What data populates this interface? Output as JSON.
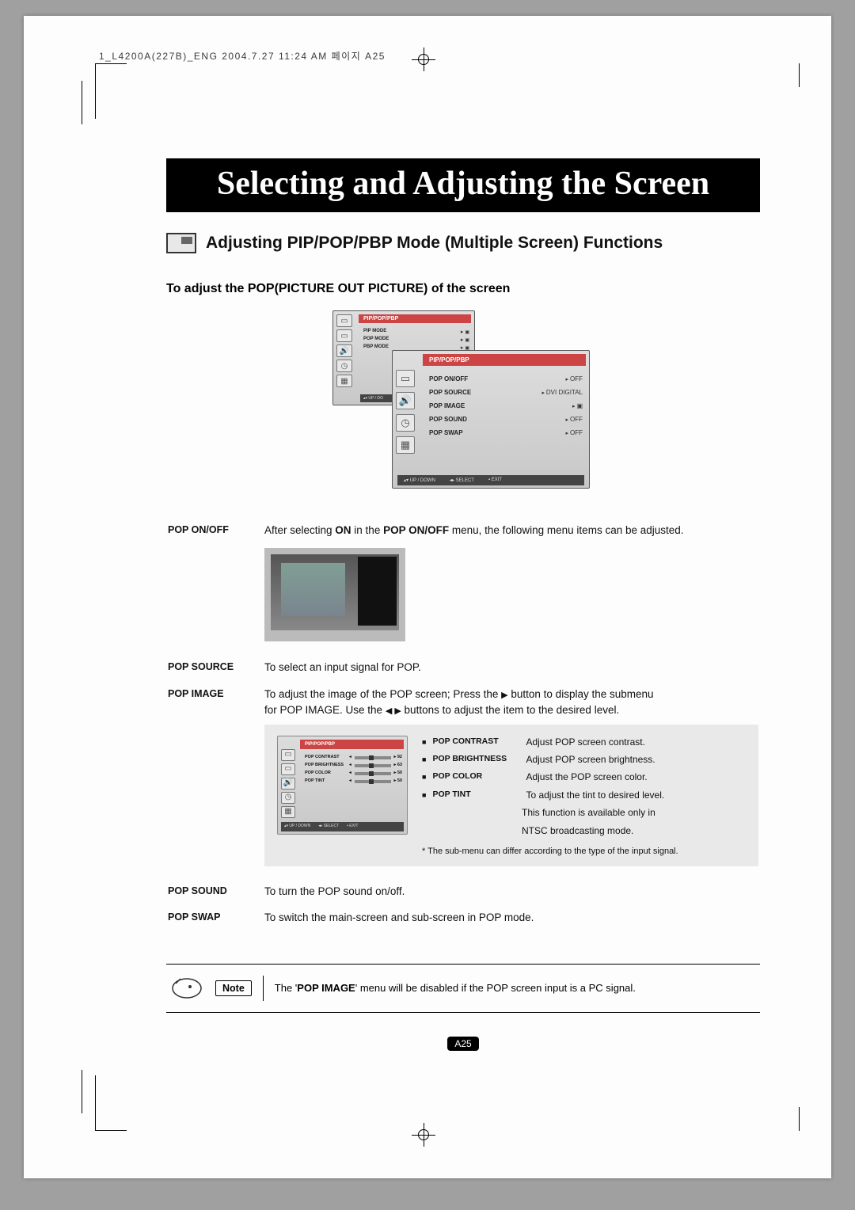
{
  "meta": {
    "header": "1_L4200A(227B)_ENG  2004.7.27  11:24 AM  페이지  A25"
  },
  "title": "Selecting and Adjusting the Screen",
  "subtitle": "Adjusting PIP/POP/PBP Mode (Multiple Screen) Functions",
  "section": "To adjust the POP(PICTURE OUT PICTURE) of the screen",
  "osd_main": {
    "title": "PIP/POP/PBP",
    "rows": [
      {
        "k": "PIP MODE",
        "v": "▣"
      },
      {
        "k": "POP MODE",
        "v": "▣"
      },
      {
        "k": "PBP MODE",
        "v": "▣"
      }
    ],
    "footer_updown": "▴▾ UP / DO"
  },
  "osd_sub": {
    "title": "PIP/POP/PBP",
    "rows": [
      {
        "k": "POP ON/OFF",
        "v": "OFF"
      },
      {
        "k": "POP SOURCE",
        "v": "DVI DIGITAL"
      },
      {
        "k": "POP IMAGE",
        "v": "▣"
      },
      {
        "k": "POP SOUND",
        "v": "OFF"
      },
      {
        "k": "POP SWAP",
        "v": "OFF"
      }
    ],
    "footer": {
      "a": "▴▾ UP / DOWN",
      "b": "◂▸ SELECT",
      "c": "▪ EXIT"
    }
  },
  "body": {
    "pop_onoff": {
      "label": "POP ON/OFF",
      "prefix": "After selecting ",
      "bold1": "ON",
      "mid": " in the ",
      "bold2": "POP ON/OFF",
      "suffix": " menu, the following menu items can be adjusted."
    },
    "pop_source": {
      "label": "POP SOURCE",
      "text": "To select an input signal for POP."
    },
    "pop_image": {
      "label": "POP IMAGE",
      "l1a": "To adjust the image of the POP screen; Press the ",
      "l1btn": "▶",
      "l1b": " button to display the submenu",
      "l2a": "for POP IMAGE. Use the ",
      "l2btn": "◀ ▶",
      "l2b": " buttons to adjust the item to the desired level."
    },
    "pop_sound": {
      "label": "POP SOUND",
      "text": "To turn the POP sound on/off."
    },
    "pop_swap": {
      "label": "POP SWAP",
      "text": "To switch the main-screen and sub-screen in POP mode."
    }
  },
  "mini_osd": {
    "title": "PIP/POP/PBP",
    "rows": [
      {
        "k": "POP CONTRAST",
        "v": "92"
      },
      {
        "k": "POP BRIGHTNESS",
        "v": "63"
      },
      {
        "k": "POP COLOR",
        "v": "50"
      },
      {
        "k": "POP TINT",
        "v": "50"
      }
    ],
    "footer": {
      "a": "▴▾ UP / DOWN",
      "b": "◂▸ SELECT",
      "c": "▪ EXIT"
    }
  },
  "submenu": {
    "items": [
      {
        "label": "POP CONTRAST",
        "desc": "Adjust POP screen contrast."
      },
      {
        "label": "POP BRIGHTNESS",
        "desc": "Adjust POP screen brightness."
      },
      {
        "label": "POP COLOR",
        "desc": "Adjust the POP screen color."
      },
      {
        "label": "POP TINT",
        "desc": "To adjust the tint to desired level."
      }
    ],
    "extra1": "This function is available only in",
    "extra2": "NTSC broadcasting mode.",
    "note": "* The sub-menu can differ according to the type of the input signal."
  },
  "footnote": {
    "tag": "Note",
    "pre": "The '",
    "bold": "POP IMAGE",
    "post": "' menu will be disabled if the POP screen input is a PC signal."
  },
  "page": "A25"
}
